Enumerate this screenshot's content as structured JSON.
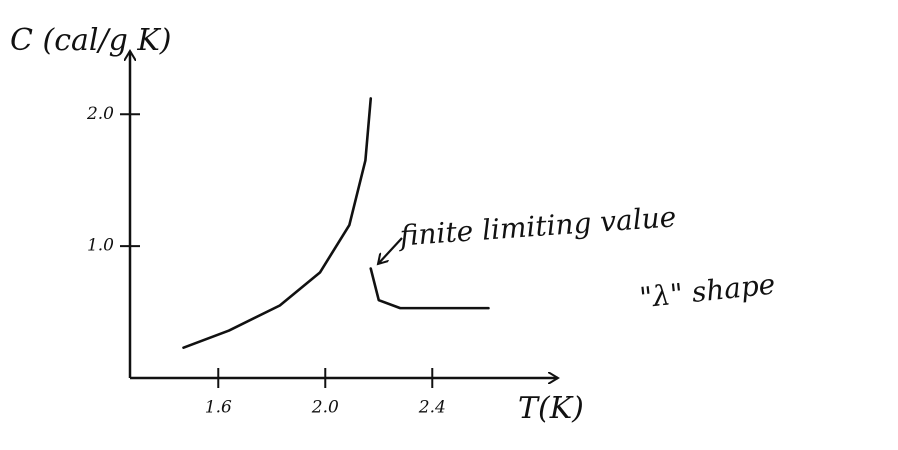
{
  "chart_data": {
    "type": "line",
    "y_label": "C (cal/g K)",
    "x_label": "T(K)",
    "annotations": [
      "finite limiting value",
      "\"λ\" shape"
    ],
    "series": [
      {
        "color": "#111111",
        "x": [
          1.47,
          1.64,
          1.83,
          1.98,
          2.09,
          2.15,
          2.17
        ],
        "values": [
          0.23,
          0.36,
          0.55,
          0.8,
          1.16,
          1.65,
          2.12
        ]
      },
      {
        "color": "#111111",
        "x": [
          2.17,
          2.2,
          2.28,
          2.61
        ],
        "values": [
          0.83,
          0.59,
          0.53,
          0.53
        ]
      }
    ],
    "xlim": [
      1.27,
      2.87
    ],
    "ylim": [
      0,
      2.48
    ],
    "xticks": [
      1.6,
      {
        "value": 2,
        "label": "2.0"
      },
      2.4
    ],
    "yticks": [
      {
        "value": 1,
        "label": "1.0"
      },
      {
        "value": 2,
        "label": "2.0"
      }
    ]
  }
}
